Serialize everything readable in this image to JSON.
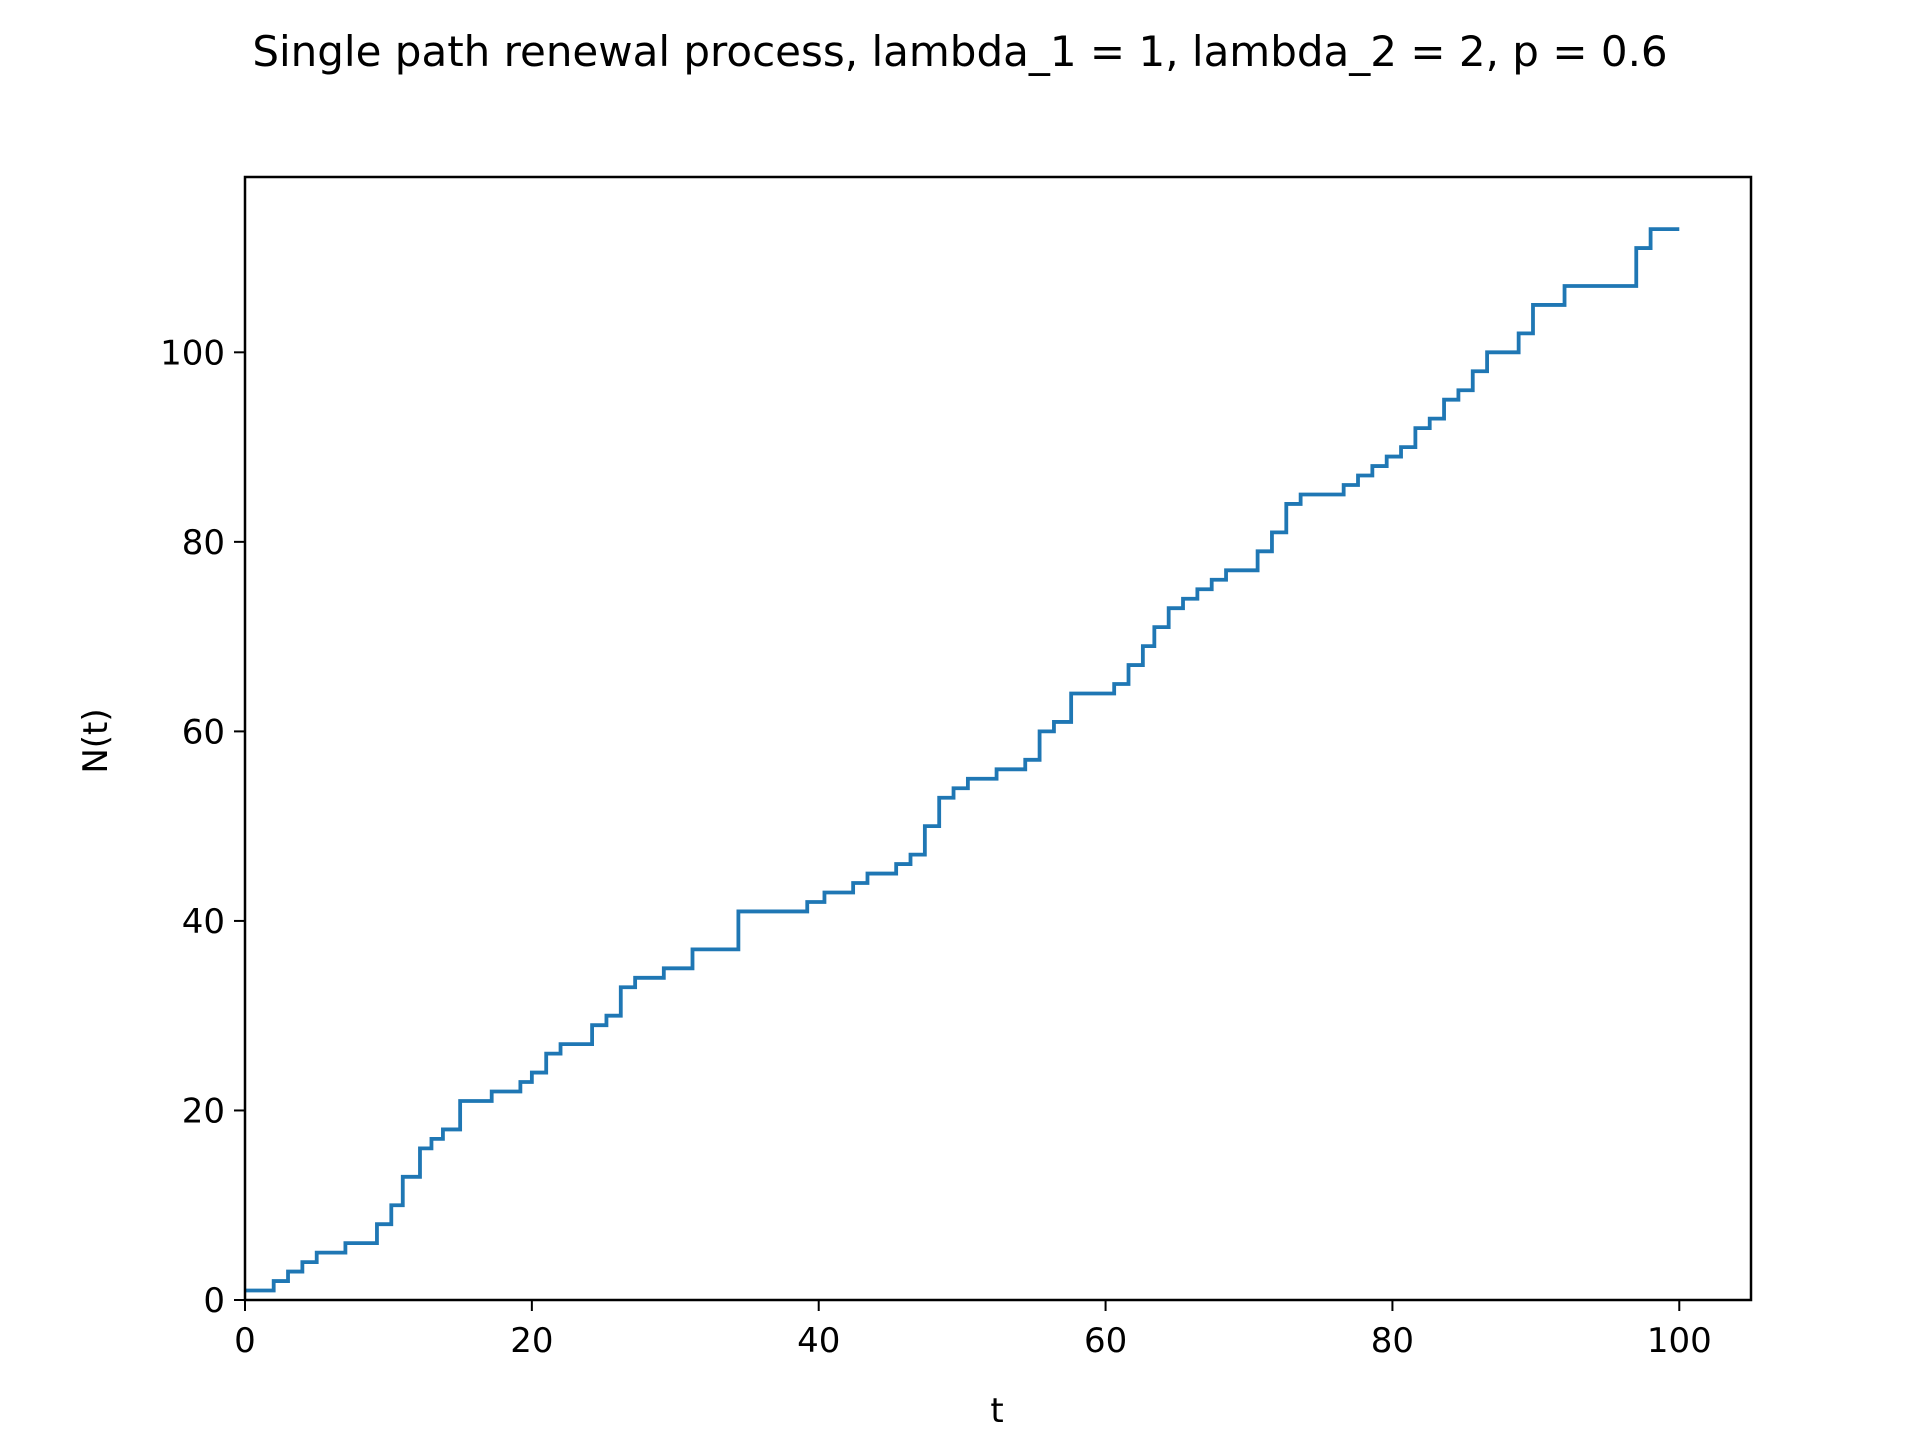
{
  "chart_data": {
    "type": "line",
    "title": "Single path renewal process, lambda_1 = 1, lambda_2 = 2, p = 0.6",
    "xlabel": "t",
    "ylabel": "N(t)",
    "xlim": [
      0,
      105
    ],
    "ylim": [
      0,
      118.5
    ],
    "x_ticks": [
      0,
      20,
      40,
      60,
      80,
      100
    ],
    "y_ticks": [
      0,
      20,
      40,
      60,
      80,
      100
    ],
    "x_tick_labels": [
      "0",
      "20",
      "40",
      "60",
      "80",
      "100"
    ],
    "y_tick_labels": [
      "0",
      "20",
      "40",
      "60",
      "80",
      "100"
    ],
    "grid": false,
    "step": "post",
    "series": [
      {
        "color": "#1f77b4",
        "points": [
          [
            0,
            1
          ],
          [
            2.0,
            2
          ],
          [
            3.0,
            3
          ],
          [
            4.0,
            4
          ],
          [
            5.0,
            5
          ],
          [
            7.0,
            6
          ],
          [
            9.2,
            8
          ],
          [
            10.2,
            10
          ],
          [
            11.0,
            13
          ],
          [
            12.2,
            16
          ],
          [
            13.0,
            17
          ],
          [
            13.8,
            18
          ],
          [
            15.0,
            21
          ],
          [
            17.2,
            22
          ],
          [
            19.2,
            23
          ],
          [
            20.0,
            24
          ],
          [
            21.0,
            26
          ],
          [
            22.0,
            27
          ],
          [
            24.2,
            29
          ],
          [
            25.2,
            30
          ],
          [
            26.2,
            33
          ],
          [
            27.2,
            34
          ],
          [
            29.2,
            35
          ],
          [
            31.2,
            37
          ],
          [
            34.4,
            41
          ],
          [
            39.2,
            42
          ],
          [
            40.4,
            43
          ],
          [
            42.4,
            44
          ],
          [
            43.4,
            45
          ],
          [
            45.4,
            46
          ],
          [
            46.4,
            47
          ],
          [
            47.4,
            50
          ],
          [
            48.4,
            53
          ],
          [
            49.4,
            54
          ],
          [
            50.4,
            55
          ],
          [
            52.4,
            56
          ],
          [
            54.4,
            57
          ],
          [
            55.4,
            60
          ],
          [
            56.4,
            61
          ],
          [
            57.6,
            64
          ],
          [
            60.6,
            65
          ],
          [
            61.6,
            67
          ],
          [
            62.6,
            69
          ],
          [
            63.4,
            71
          ],
          [
            64.4,
            73
          ],
          [
            65.4,
            74
          ],
          [
            66.4,
            75
          ],
          [
            67.4,
            76
          ],
          [
            68.4,
            77
          ],
          [
            70.6,
            79
          ],
          [
            71.6,
            81
          ],
          [
            72.6,
            84
          ],
          [
            73.6,
            85
          ],
          [
            76.6,
            86
          ],
          [
            77.6,
            87
          ],
          [
            78.6,
            88
          ],
          [
            79.6,
            89
          ],
          [
            80.6,
            90
          ],
          [
            81.6,
            92
          ],
          [
            82.6,
            93
          ],
          [
            83.6,
            95
          ],
          [
            84.6,
            96
          ],
          [
            85.6,
            98
          ],
          [
            86.6,
            100
          ],
          [
            88.8,
            102
          ],
          [
            89.8,
            105
          ],
          [
            92.0,
            107
          ],
          [
            97.0,
            111
          ],
          [
            98.0,
            113
          ],
          [
            100.0,
            113
          ]
        ]
      }
    ]
  }
}
